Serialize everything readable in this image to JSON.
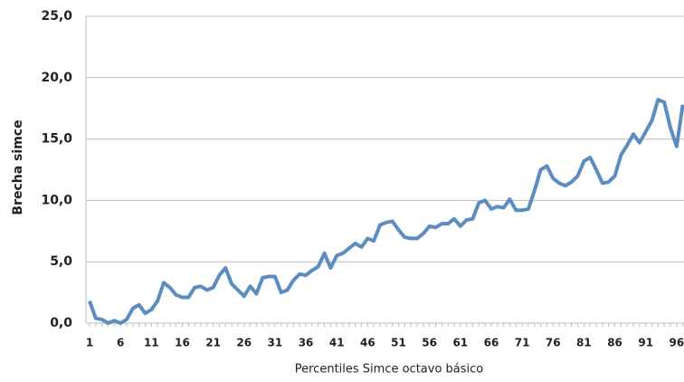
{
  "chart_data": {
    "type": "line",
    "x_label": "Percentiles Simce octavo básico",
    "y_label": "Brecha simce",
    "categories": [
      "1",
      null,
      null,
      null,
      null,
      "6",
      null,
      null,
      null,
      null,
      "11",
      null,
      null,
      null,
      null,
      "16",
      null,
      null,
      null,
      null,
      "21",
      null,
      null,
      null,
      null,
      "26",
      null,
      null,
      null,
      null,
      "31",
      null,
      null,
      null,
      null,
      "36",
      null,
      null,
      null,
      null,
      "41",
      null,
      null,
      null,
      null,
      "46",
      null,
      null,
      null,
      null,
      "51",
      null,
      null,
      null,
      null,
      "56",
      null,
      null,
      null,
      null,
      "61",
      null,
      null,
      null,
      null,
      "66",
      null,
      null,
      null,
      null,
      "71",
      null,
      null,
      null,
      null,
      "76",
      null,
      null,
      null,
      null,
      "81",
      null,
      null,
      null,
      null,
      "86",
      null,
      null,
      null,
      null,
      "91",
      null,
      null,
      null,
      null,
      "96",
      null
    ],
    "series": [
      {
        "name": "Brecha simce",
        "color": "#5b8dc0",
        "values": [
          1.8,
          0.4,
          0.3,
          0.0,
          0.2,
          0.0,
          0.3,
          1.2,
          1.5,
          0.8,
          1.1,
          1.8,
          3.3,
          2.9,
          2.3,
          2.1,
          2.1,
          2.9,
          3.0,
          2.7,
          2.9,
          3.9,
          4.5,
          3.2,
          2.7,
          2.2,
          3.0,
          2.4,
          3.7,
          3.8,
          3.8,
          2.5,
          2.7,
          3.5,
          4.0,
          3.9,
          4.3,
          4.6,
          5.7,
          4.5,
          5.5,
          5.7,
          6.1,
          6.5,
          6.2,
          6.9,
          6.7,
          8.0,
          8.2,
          8.3,
          7.6,
          7.0,
          6.9,
          6.9,
          7.3,
          7.9,
          7.8,
          8.1,
          8.1,
          8.5,
          7.9,
          8.4,
          8.5,
          9.8,
          10.0,
          9.3,
          9.5,
          9.4,
          10.1,
          9.2,
          9.2,
          9.3,
          10.8,
          12.5,
          12.8,
          11.8,
          11.4,
          11.2,
          11.5,
          12.0,
          13.2,
          13.5,
          12.5,
          11.4,
          11.5,
          12.0,
          13.7,
          14.5,
          15.4,
          14.7,
          15.6,
          16.5,
          18.2,
          18.0,
          15.9,
          14.4,
          17.8
        ]
      }
    ],
    "ylim": [
      0,
      25
    ],
    "yticks": [
      {
        "value": 0,
        "label": "0,0"
      },
      {
        "value": 5,
        "label": "5,0"
      },
      {
        "value": 10,
        "label": "10,0"
      },
      {
        "value": 15,
        "label": "15,0"
      },
      {
        "value": 20,
        "label": "20,0"
      },
      {
        "value": 25,
        "label": "25,0"
      }
    ],
    "grid": true
  }
}
